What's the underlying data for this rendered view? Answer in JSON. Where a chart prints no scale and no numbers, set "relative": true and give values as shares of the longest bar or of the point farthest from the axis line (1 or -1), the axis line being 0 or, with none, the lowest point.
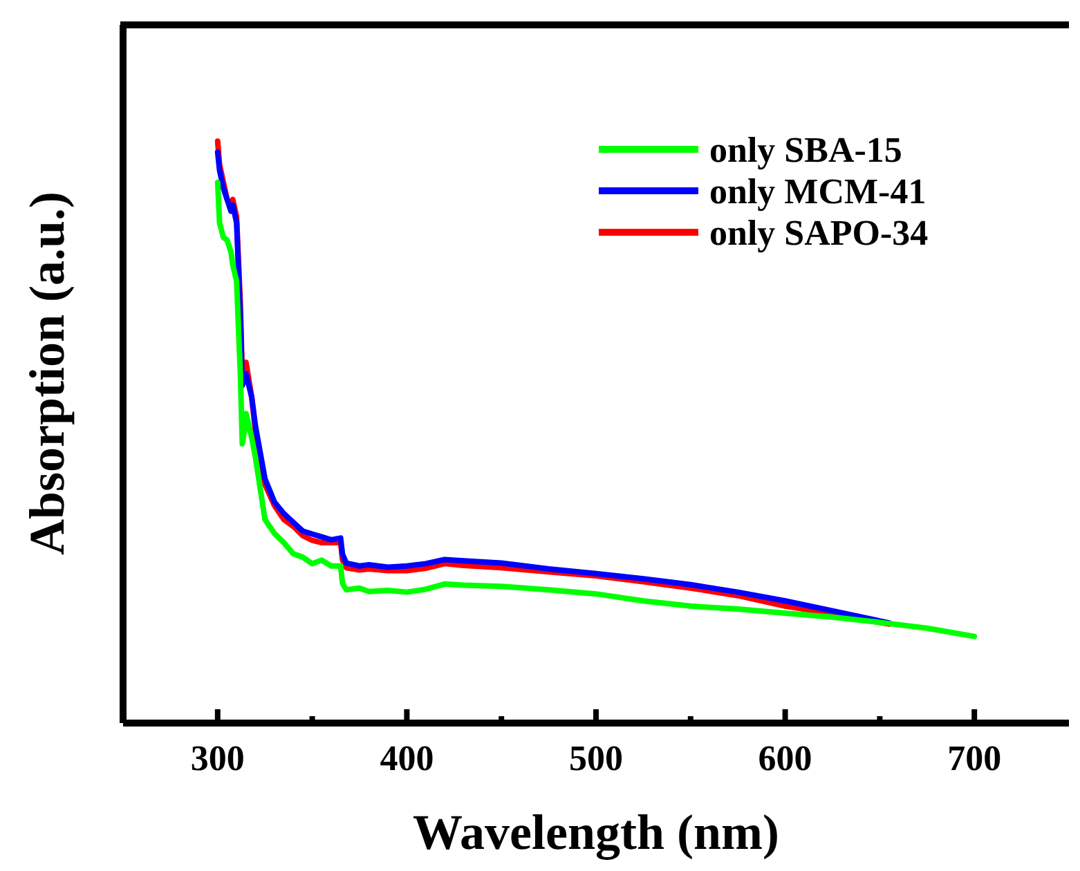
{
  "chart_data": {
    "type": "line",
    "xlabel": "Wavelength (nm)",
    "ylabel": "Absorption (a.u.)",
    "relative": true,
    "xlim": [
      250,
      750
    ],
    "xticks": [
      300,
      {
        "value": 350,
        "label": null
      },
      400,
      {
        "value": 450,
        "label": null
      },
      500,
      {
        "value": 550,
        "label": null
      },
      600,
      {
        "value": 650,
        "label": null
      },
      700
    ],
    "legend": "top right",
    "marker": "none",
    "line_style": "solid",
    "series": [
      {
        "name": "only SBA-15",
        "color": "#00ff00",
        "x": [
          300,
          301,
          303,
          305,
          307,
          308,
          310,
          312,
          313,
          314,
          315,
          318,
          320,
          325,
          330,
          335,
          340,
          345,
          350,
          355,
          360,
          365,
          366,
          368,
          375,
          380,
          390,
          400,
          410,
          420,
          430,
          450,
          475,
          500,
          525,
          550,
          575,
          600,
          625,
          650,
          675,
          700
        ],
        "values": [
          0.929,
          0.86,
          0.835,
          0.83,
          0.81,
          0.787,
          0.76,
          0.6,
          0.48,
          0.5,
          0.532,
          0.49,
          0.456,
          0.35,
          0.326,
          0.31,
          0.291,
          0.285,
          0.274,
          0.28,
          0.27,
          0.27,
          0.24,
          0.229,
          0.232,
          0.226,
          0.228,
          0.225,
          0.23,
          0.239,
          0.237,
          0.235,
          0.229,
          0.222,
          0.21,
          0.201,
          0.196,
          0.189,
          0.182,
          0.173,
          0.163,
          0.149
        ]
      },
      {
        "name": "only MCM-41",
        "color": "#0000ff",
        "x": [
          300,
          301,
          303,
          305,
          307,
          308,
          310,
          312,
          313,
          315,
          318,
          320,
          325,
          330,
          335,
          340,
          345,
          350,
          355,
          360,
          365,
          366,
          368,
          375,
          380,
          390,
          400,
          410,
          420,
          430,
          450,
          475,
          500,
          525,
          550,
          575,
          600,
          625,
          655
        ],
        "values": [
          0.981,
          0.95,
          0.92,
          0.9,
          0.88,
          0.89,
          0.86,
          0.7,
          0.58,
          0.6,
          0.56,
          0.51,
          0.42,
          0.38,
          0.36,
          0.345,
          0.33,
          0.325,
          0.32,
          0.315,
          0.318,
          0.29,
          0.275,
          0.27,
          0.272,
          0.268,
          0.27,
          0.274,
          0.281,
          0.279,
          0.275,
          0.265,
          0.257,
          0.248,
          0.238,
          0.225,
          0.21,
          0.193,
          0.172
        ]
      },
      {
        "name": "only SAPO-34",
        "color": "#ff0000",
        "x": [
          300,
          301,
          303,
          305,
          307,
          308,
          310,
          312,
          313,
          315,
          318,
          320,
          325,
          330,
          335,
          340,
          345,
          350,
          355,
          360,
          365,
          366,
          368,
          375,
          380,
          390,
          400,
          410,
          420,
          430,
          450,
          475,
          500,
          525,
          550,
          575,
          600,
          625,
          655
        ],
        "values": [
          1.0,
          0.96,
          0.93,
          0.9,
          0.89,
          0.9,
          0.87,
          0.72,
          0.6,
          0.62,
          0.56,
          0.5,
          0.41,
          0.374,
          0.35,
          0.338,
          0.322,
          0.314,
          0.31,
          0.31,
          0.31,
          0.28,
          0.267,
          0.263,
          0.265,
          0.262,
          0.262,
          0.266,
          0.274,
          0.271,
          0.267,
          0.26,
          0.253,
          0.243,
          0.232,
          0.219,
          0.201,
          0.188,
          0.17
        ]
      }
    ]
  }
}
